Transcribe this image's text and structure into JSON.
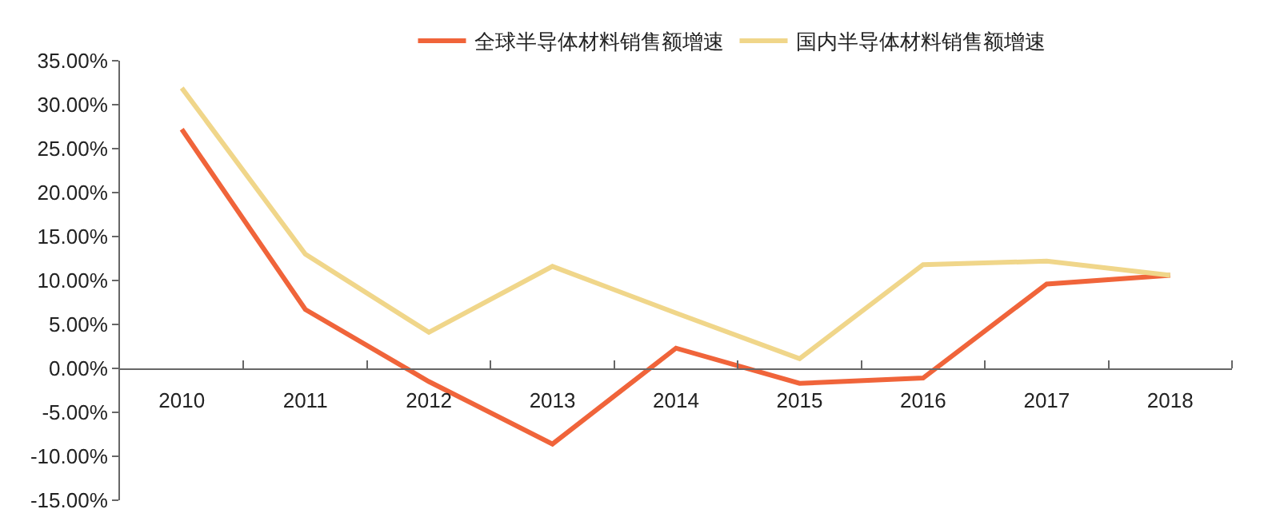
{
  "chart_data": {
    "type": "line",
    "categories": [
      "2010",
      "2011",
      "2012",
      "2013",
      "2014",
      "2015",
      "2016",
      "2017",
      "2018"
    ],
    "series": [
      {
        "name": "全球半导体材料销售额增速",
        "color": "#f0643a",
        "values": [
          27.2,
          6.7,
          -1.5,
          -8.6,
          2.3,
          -1.7,
          -1.1,
          9.6,
          10.6
        ]
      },
      {
        "name": "国内半导体材料销售额增速",
        "color": "#f0d68a",
        "values": [
          31.9,
          13.0,
          4.1,
          11.6,
          6.3,
          1.1,
          11.8,
          12.2,
          10.6
        ]
      }
    ],
    "ylim": [
      -15,
      35
    ],
    "yticks": [
      {
        "value": -15,
        "label": "-15.00%"
      },
      {
        "value": -10,
        "label": "-10.00%"
      },
      {
        "value": -5,
        "label": "-5.00%"
      },
      {
        "value": 0,
        "label": "0.00%"
      },
      {
        "value": 5,
        "label": "5.00%"
      },
      {
        "value": 10,
        "label": "10.00%"
      },
      {
        "value": 15,
        "label": "15.00%"
      },
      {
        "value": 20,
        "label": "20.00%"
      },
      {
        "value": 25,
        "label": "25.00%"
      },
      {
        "value": 30,
        "label": "30.00%"
      },
      {
        "value": 35,
        "label": "35.00%"
      }
    ],
    "legend": "top",
    "marker": "none"
  }
}
